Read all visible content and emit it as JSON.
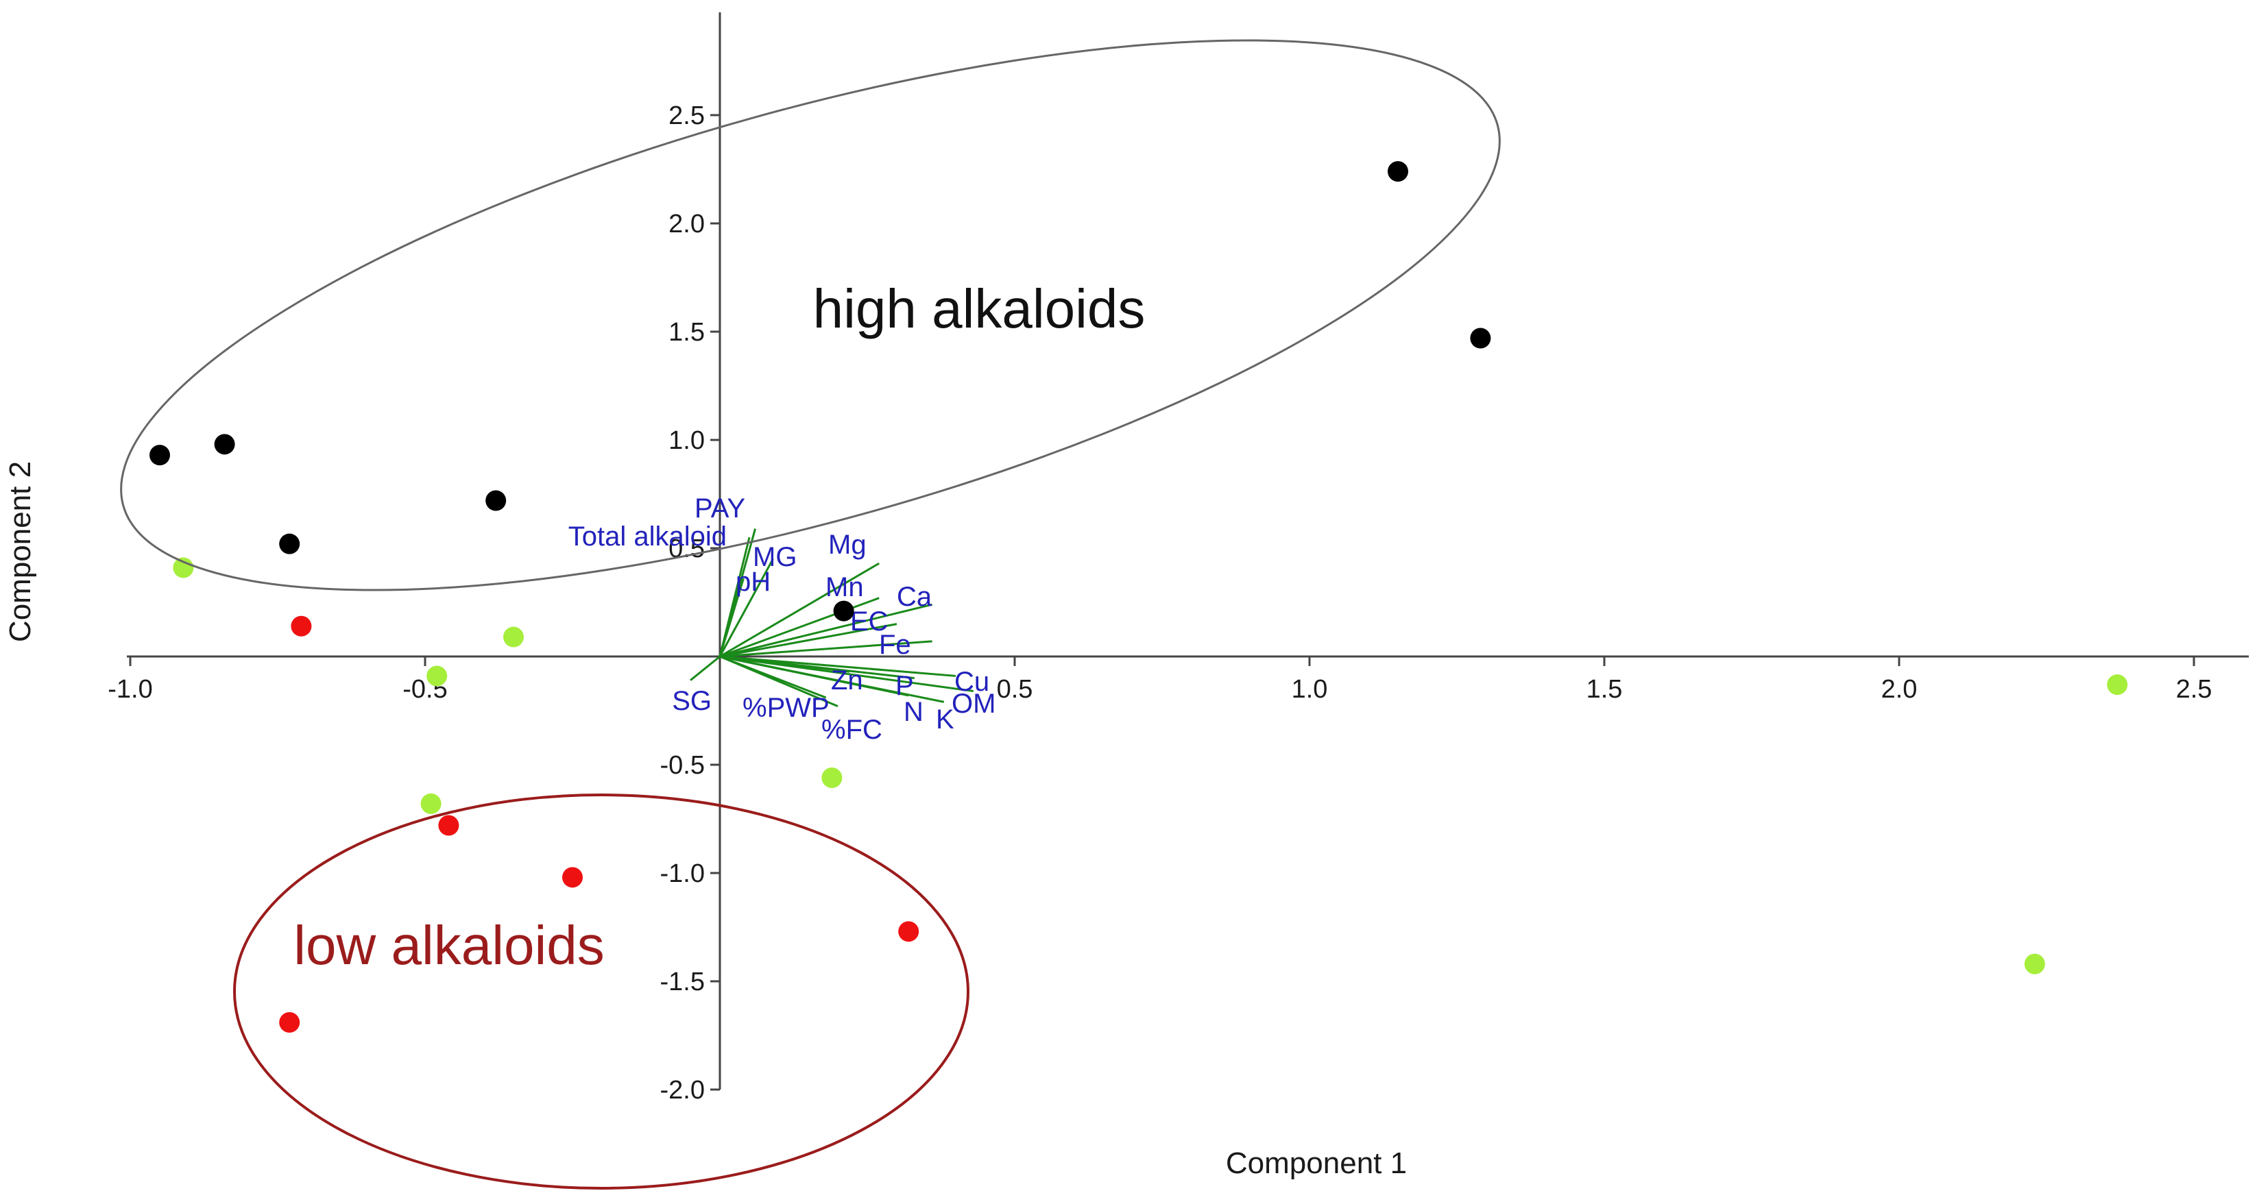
{
  "chart_data": {
    "type": "scatter",
    "subtype": "pca-biplot",
    "title": "",
    "xlabel": "Component 1",
    "ylabel": "Component 2",
    "xlim": [
      -1.0,
      2.55
    ],
    "ylim": [
      -2.0,
      2.95
    ],
    "xticks": [
      -1.0,
      -0.5,
      0.5,
      1.0,
      1.5,
      2.0,
      2.5
    ],
    "xtick_labels": [
      "-1.0",
      "-0.5",
      "0.5",
      "1.0",
      "1.5",
      "2.0",
      "2.5"
    ],
    "yticks": [
      -2.0,
      -1.5,
      -1.0,
      -0.5,
      0.5,
      1.0,
      1.5,
      2.0,
      2.5
    ],
    "ytick_labels": [
      "-2.0",
      "-1.5",
      "-1.0",
      "-0.5",
      "0.5",
      "1.0",
      "1.5",
      "2.0",
      "2.5"
    ],
    "grid": false,
    "colors": {
      "black_group": "#000000",
      "red_group": "#ee1111",
      "green_group": "#a6ee3c",
      "loading_line": "#1a8a1a",
      "loading_text": "#2222bb",
      "high_ellipse": "#666666",
      "low_ellipse": "#9b1c1c"
    },
    "series": [
      {
        "color": "#000000",
        "points": [
          {
            "x": -0.95,
            "y": 0.93
          },
          {
            "x": -0.84,
            "y": 0.98
          },
          {
            "x": -0.73,
            "y": 0.52
          },
          {
            "x": -0.38,
            "y": 0.72
          },
          {
            "x": 0.21,
            "y": 0.21
          },
          {
            "x": 1.15,
            "y": 2.24
          },
          {
            "x": 1.29,
            "y": 1.47
          }
        ]
      },
      {
        "color": "#ee1111",
        "points": [
          {
            "x": -0.71,
            "y": 0.14
          },
          {
            "x": -0.46,
            "y": -0.78
          },
          {
            "x": -0.25,
            "y": -1.02
          },
          {
            "x": 0.32,
            "y": -1.27
          },
          {
            "x": -0.73,
            "y": -1.69
          }
        ]
      },
      {
        "color": "#a6ee3c",
        "points": [
          {
            "x": -0.91,
            "y": 0.41
          },
          {
            "x": -0.35,
            "y": 0.09
          },
          {
            "x": -0.48,
            "y": -0.09
          },
          {
            "x": -0.49,
            "y": -0.68
          },
          {
            "x": 0.19,
            "y": -0.56
          },
          {
            "x": 2.37,
            "y": -0.13
          },
          {
            "x": 2.23,
            "y": -1.42
          }
        ]
      }
    ],
    "loadings": [
      {
        "name": "PAY",
        "x": 0.06,
        "y": 0.59
      },
      {
        "name": "Total alkaloid",
        "x": 0.05,
        "y": 0.55
      },
      {
        "name": "MG",
        "x": 0.09,
        "y": 0.45
      },
      {
        "name": "pH",
        "x": 0.04,
        "y": 0.36
      },
      {
        "name": "Mg",
        "x": 0.27,
        "y": 0.43
      },
      {
        "name": "Mn",
        "x": 0.27,
        "y": 0.27
      },
      {
        "name": "Ca",
        "x": 0.36,
        "y": 0.24
      },
      {
        "name": "EC",
        "x": 0.3,
        "y": 0.15
      },
      {
        "name": "Fe",
        "x": 0.36,
        "y": 0.07
      },
      {
        "name": "Zn",
        "x": 0.22,
        "y": -0.07
      },
      {
        "name": "P",
        "x": 0.33,
        "y": -0.1
      },
      {
        "name": "Cu",
        "x": 0.4,
        "y": -0.09
      },
      {
        "name": "N",
        "x": 0.32,
        "y": -0.18
      },
      {
        "name": "K",
        "x": 0.38,
        "y": -0.21
      },
      {
        "name": "OM",
        "x": 0.43,
        "y": -0.16
      },
      {
        "name": "%PWP",
        "x": 0.18,
        "y": -0.19
      },
      {
        "name": "%FC",
        "x": 0.2,
        "y": -0.23
      },
      {
        "name": "SG",
        "x": -0.05,
        "y": -0.11
      }
    ],
    "annotations": [
      {
        "text": "high alkaloids",
        "color": "#111111"
      },
      {
        "text": "low alkaloids",
        "color": "#9b1c1c"
      }
    ]
  }
}
